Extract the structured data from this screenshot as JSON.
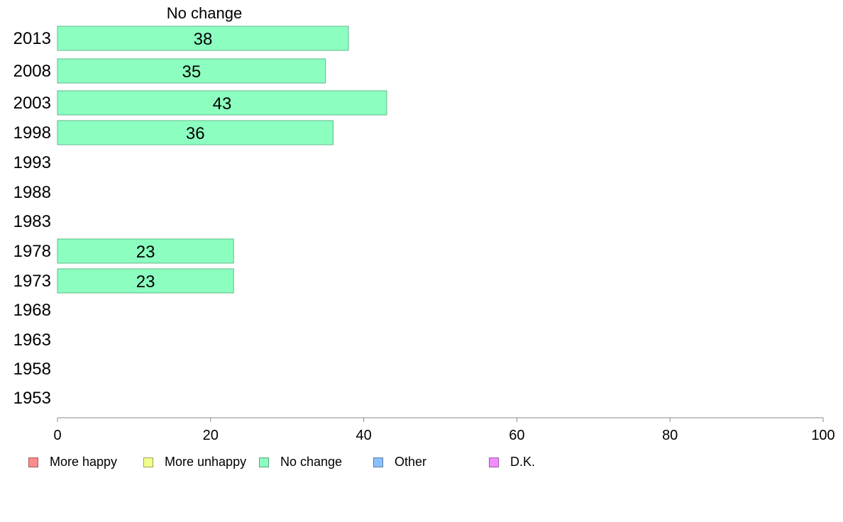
{
  "chart_data": {
    "type": "bar",
    "orientation": "horizontal",
    "title": "No change",
    "categories": [
      "2013",
      "2008",
      "2003",
      "1998",
      "1993",
      "1988",
      "1983",
      "1978",
      "1973",
      "1968",
      "1963",
      "1958",
      "1953"
    ],
    "values": [
      38,
      35,
      43,
      36,
      null,
      null,
      null,
      23,
      23,
      null,
      null,
      null,
      null
    ],
    "series_color": "#8cffc0",
    "xlim": [
      0,
      100
    ],
    "xticks": [
      0,
      20,
      40,
      60,
      80,
      100
    ],
    "xtick_labels": [
      "0",
      "20",
      "40",
      "60",
      "80",
      "100"
    ],
    "legend": [
      {
        "label": "More happy",
        "color": "#ff8c8c"
      },
      {
        "label": "More unhappy",
        "color": "#f2ff8c"
      },
      {
        "label": "No change",
        "color": "#8cffc0"
      },
      {
        "label": "Other",
        "color": "#8cc0ff"
      },
      {
        "label": "D.K.",
        "color": "#f28cff"
      }
    ],
    "legend_position": "bottom-left",
    "grid": false
  }
}
